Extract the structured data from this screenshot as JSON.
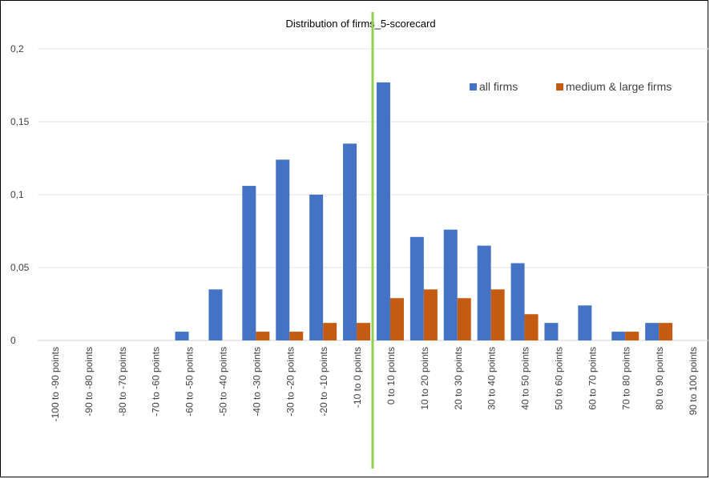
{
  "chart_data": {
    "type": "bar",
    "title": "Distribution of firms_5-scorecard",
    "xlabel": "",
    "ylabel": "",
    "categories": [
      "-100 to -90 points",
      "-90 to -80 points",
      "-80 to -70 points",
      "-70 to -60 points",
      "-60 to -50 points",
      "-50 to -40 points",
      "-40 to -30 points",
      "-30 to -20 points",
      "-20 to -10 points",
      "-10 to 0 points",
      "0 to 10 points",
      "10 to 20 points",
      "20 to 30 points",
      "30 to 40 points",
      "40 to 50 points",
      "50 to 60 points",
      "60 to 70 points",
      "70 to 80 points",
      "80 to 90 points",
      "90 to 100 points"
    ],
    "series": [
      {
        "name": "all firms",
        "color": "#4472C4",
        "values": [
          0,
          0,
          0,
          0,
          0.006,
          0.035,
          0.106,
          0.124,
          0.1,
          0.135,
          0.177,
          0.071,
          0.076,
          0.065,
          0.053,
          0.012,
          0.024,
          0.006,
          0.012,
          0
        ]
      },
      {
        "name": "medium & large firms",
        "color": "#C55A11",
        "values": [
          0,
          0,
          0,
          0,
          0,
          0,
          0.006,
          0.006,
          0.012,
          0.012,
          0.029,
          0.035,
          0.029,
          0.035,
          0.018,
          0,
          0,
          0.006,
          0.012,
          0
        ]
      }
    ],
    "ylim": [
      0,
      0.2
    ],
    "yticks": [
      {
        "value": 0,
        "label": "0"
      },
      {
        "value": 0.05,
        "label": "0,05"
      },
      {
        "value": 0.1,
        "label": "0,1"
      },
      {
        "value": 0.15,
        "label": "0,15"
      },
      {
        "value": 0.2,
        "label": "0,2"
      }
    ],
    "grid": true,
    "legend_position": "top-right",
    "reference_line": {
      "at_category_boundary": "-10 to 0 points | 0 to 10 points",
      "color": "#92D050"
    }
  }
}
